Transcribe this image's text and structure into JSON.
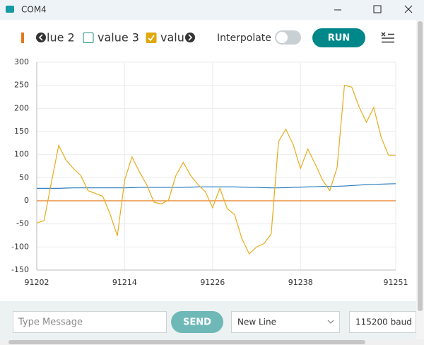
{
  "ui": {
    "window_title": "COM4",
    "legend": [
      {
        "label": "lue 2",
        "color": "#e47a1c",
        "checked": true
      },
      {
        "label": "value 3",
        "color": "#1e8a7d",
        "checked": false
      },
      {
        "label": "valu",
        "color": "#e0a80c",
        "checked": true
      }
    ],
    "interpolate_label": "Interpolate",
    "run_button": "RUN",
    "message_placeholder": "Type Message",
    "send_button": "SEND",
    "line_ending": "New Line",
    "baud": "115200 baud"
  },
  "chart_data": {
    "type": "line",
    "x": [
      91202,
      91203,
      91204,
      91205,
      91206,
      91207,
      91208,
      91209,
      91210,
      91211,
      91212,
      91213,
      91214,
      91215,
      91216,
      91217,
      91218,
      91219,
      91220,
      91221,
      91222,
      91223,
      91224,
      91225,
      91226,
      91227,
      91228,
      91229,
      91230,
      91231,
      91232,
      91233,
      91234,
      91235,
      91236,
      91237,
      91238,
      91239,
      91240,
      91241,
      91242,
      91243,
      91244,
      91245,
      91246,
      91247,
      91248,
      91249,
      91250,
      91251
    ],
    "series": [
      {
        "color": "#2f7fc1",
        "values": [
          27,
          27,
          27,
          27,
          27.5,
          28,
          28,
          28,
          28,
          28,
          28,
          28,
          28,
          28.5,
          29,
          29,
          29,
          29,
          29,
          29,
          29,
          29.5,
          30,
          30,
          30,
          30,
          30,
          30,
          29.5,
          29,
          29,
          28.5,
          28,
          28,
          28.5,
          29,
          29.5,
          30,
          30.5,
          31,
          31,
          31.5,
          32,
          33,
          34,
          35,
          35.5,
          36,
          36.5,
          37
        ]
      },
      {
        "name": "lue 2",
        "color": "#e47a1c",
        "values": [
          0,
          0,
          0,
          0,
          0,
          0,
          0,
          0,
          0,
          0,
          0,
          0,
          0,
          0,
          0,
          0,
          0,
          0,
          0,
          0,
          0,
          0,
          0,
          0,
          0,
          0,
          0,
          0,
          0,
          0,
          0,
          0,
          0,
          0,
          0,
          0,
          0,
          0,
          0,
          0,
          0,
          0,
          0,
          0,
          0,
          0,
          0,
          0,
          0,
          0
        ]
      },
      {
        "name": "valu",
        "color": "#e6ac1e",
        "values": [
          -48,
          -43,
          40,
          120,
          88,
          70,
          55,
          22,
          16,
          10,
          -28,
          -76,
          45,
          95,
          63,
          35,
          -3,
          -7,
          2,
          55,
          83,
          55,
          35,
          20,
          -15,
          27,
          -17,
          -30,
          -82,
          -115,
          -100,
          -93,
          -72,
          128,
          155,
          122,
          70,
          112,
          80,
          45,
          22,
          72,
          250,
          246,
          203,
          170,
          202,
          138,
          99,
          98
        ]
      }
    ],
    "xlim": [
      91202,
      91251
    ],
    "xticks": [
      91202,
      91214,
      91226,
      91238,
      91251
    ],
    "ylim": [
      -150,
      300
    ],
    "yticks": [
      300,
      250,
      200,
      150,
      100,
      50,
      0,
      -50,
      -100,
      -150
    ],
    "grid": true
  }
}
